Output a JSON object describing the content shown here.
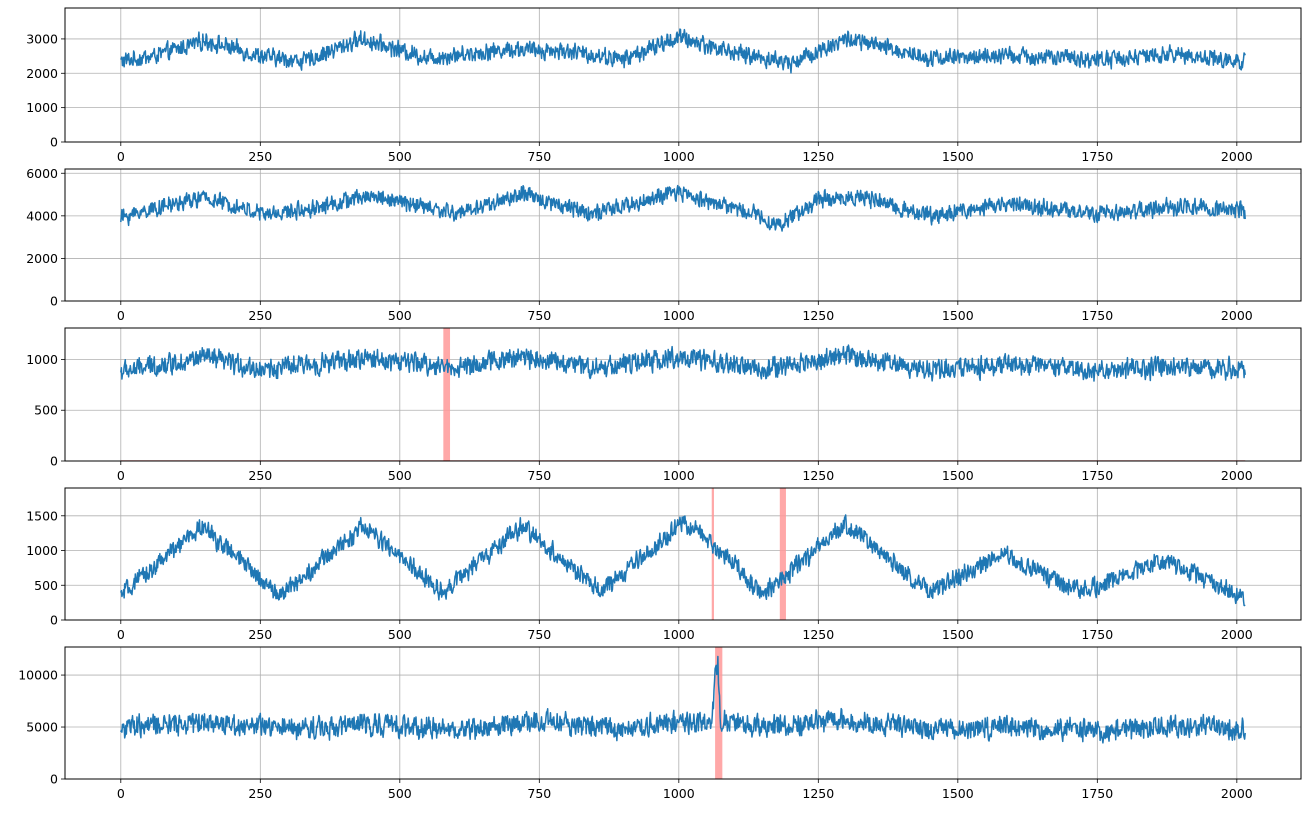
{
  "chart_data": [
    {
      "type": "line",
      "title": "",
      "xlabel": "",
      "ylabel": "",
      "xlim": [
        -100,
        2115
      ],
      "ylim": [
        0,
        3900
      ],
      "xticks": [
        0,
        250,
        500,
        750,
        1000,
        1250,
        1500,
        1750,
        2000
      ],
      "xtick_labels": [
        "0",
        "250",
        "500",
        "750",
        "1000",
        "1250",
        "1500",
        "1750",
        "2000"
      ],
      "yticks": [
        0,
        1000,
        2000,
        3000
      ],
      "ytick_labels": [
        "0",
        "1000",
        "2000",
        "3000"
      ],
      "grid": true,
      "series": [
        {
          "x_start": 0,
          "x_end": 2015,
          "envelope": [
            [
              0,
              2350
            ],
            [
              60,
              2500
            ],
            [
              150,
              2950
            ],
            [
              250,
              2500
            ],
            [
              330,
              2350
            ],
            [
              430,
              3000
            ],
            [
              550,
              2450
            ],
            [
              700,
              2700
            ],
            [
              800,
              2650
            ],
            [
              900,
              2400
            ],
            [
              1000,
              3050
            ],
            [
              1100,
              2600
            ],
            [
              1200,
              2300
            ],
            [
              1300,
              3000
            ],
            [
              1450,
              2450
            ],
            [
              1600,
              2500
            ],
            [
              1750,
              2400
            ],
            [
              1900,
              2550
            ],
            [
              2015,
              2300
            ]
          ],
          "noise_amplitude": 420,
          "color": "#1f77b4"
        }
      ],
      "anomaly_regions": []
    },
    {
      "type": "line",
      "title": "",
      "xlabel": "",
      "ylabel": "",
      "xlim": [
        -100,
        2115
      ],
      "ylim": [
        0,
        6200
      ],
      "xticks": [
        0,
        250,
        500,
        750,
        1000,
        1250,
        1500,
        1750,
        2000
      ],
      "xtick_labels": [
        "0",
        "250",
        "500",
        "750",
        "1000",
        "1250",
        "1500",
        "1750",
        "2000"
      ],
      "yticks": [
        0,
        2000,
        4000,
        6000
      ],
      "ytick_labels": [
        "0",
        "2000",
        "4000",
        "6000"
      ],
      "grid": true,
      "series": [
        {
          "x_start": 0,
          "x_end": 2015,
          "envelope": [
            [
              0,
              3900
            ],
            [
              50,
              4300
            ],
            [
              150,
              4850
            ],
            [
              260,
              4050
            ],
            [
              330,
              4300
            ],
            [
              450,
              4950
            ],
            [
              600,
              4100
            ],
            [
              720,
              5000
            ],
            [
              850,
              4100
            ],
            [
              1000,
              5100
            ],
            [
              1150,
              4000
            ],
            [
              1175,
              3500
            ],
            [
              1250,
              4750
            ],
            [
              1320,
              4900
            ],
            [
              1450,
              4000
            ],
            [
              1600,
              4600
            ],
            [
              1750,
              4050
            ],
            [
              1900,
              4450
            ],
            [
              2015,
              4250
            ]
          ],
          "noise_amplitude": 650,
          "color": "#1f77b4"
        }
      ],
      "anomaly_regions": []
    },
    {
      "type": "line",
      "title": "",
      "xlabel": "",
      "ylabel": "",
      "xlim": [
        -100,
        2115
      ],
      "ylim": [
        0,
        1310
      ],
      "xticks": [
        0,
        250,
        500,
        750,
        1000,
        1250,
        1500,
        1750,
        2000
      ],
      "xtick_labels": [
        "0",
        "250",
        "500",
        "750",
        "1000",
        "1250",
        "1500",
        "1750",
        "2000"
      ],
      "yticks": [
        0,
        500,
        1000
      ],
      "ytick_labels": [
        "0",
        "500",
        "1000"
      ],
      "grid": true,
      "series": [
        {
          "x_start": 0,
          "x_end": 2015,
          "envelope": [
            [
              0,
              880
            ],
            [
              150,
              1020
            ],
            [
              250,
              900
            ],
            [
              450,
              1010
            ],
            [
              600,
              920
            ],
            [
              720,
              1030
            ],
            [
              850,
              920
            ],
            [
              1000,
              1020
            ],
            [
              1150,
              900
            ],
            [
              1300,
              1040
            ],
            [
              1450,
              900
            ],
            [
              1600,
              950
            ],
            [
              1750,
              880
            ],
            [
              1900,
              930
            ],
            [
              2015,
              900
            ]
          ],
          "noise_amplitude": 170,
          "color": "#1f77b4"
        }
      ],
      "anomaly_regions": [
        [
          578,
          590
        ]
      ],
      "baseline_color": "#c00000"
    },
    {
      "type": "line",
      "title": "",
      "xlabel": "",
      "ylabel": "",
      "xlim": [
        -100,
        2115
      ],
      "ylim": [
        0,
        1900
      ],
      "xticks": [
        0,
        250,
        500,
        750,
        1000,
        1250,
        1500,
        1750,
        2000
      ],
      "xtick_labels": [
        "0",
        "250",
        "500",
        "750",
        "1000",
        "1250",
        "1500",
        "1750",
        "2000"
      ],
      "yticks": [
        0,
        500,
        1000,
        1500
      ],
      "ytick_labels": [
        "0",
        "500",
        "1000",
        "1500"
      ],
      "grid": true,
      "series": [
        {
          "x_start": 0,
          "x_end": 2015,
          "envelope": [
            [
              0,
              350
            ],
            [
              145,
              1350
            ],
            [
              285,
              350
            ],
            [
              435,
              1350
            ],
            [
              575,
              400
            ],
            [
              720,
              1350
            ],
            [
              860,
              400
            ],
            [
              1010,
              1400
            ],
            [
              1060,
              1100
            ],
            [
              1150,
              400
            ],
            [
              1180,
              550
            ],
            [
              1300,
              1380
            ],
            [
              1450,
              400
            ],
            [
              1580,
              950
            ],
            [
              1720,
              400
            ],
            [
              1870,
              880
            ],
            [
              2015,
              300
            ]
          ],
          "noise_amplitude": 230,
          "color": "#1f77b4"
        }
      ],
      "anomaly_regions": [
        [
          1059,
          1063
        ],
        [
          1181,
          1192
        ]
      ]
    },
    {
      "type": "line",
      "title": "",
      "xlabel": "",
      "ylabel": "",
      "xlim": [
        -100,
        2115
      ],
      "ylim": [
        0,
        12700
      ],
      "xticks": [
        0,
        250,
        500,
        750,
        1000,
        1250,
        1500,
        1750,
        2000
      ],
      "xtick_labels": [
        "0",
        "250",
        "500",
        "750",
        "1000",
        "1250",
        "1500",
        "1750",
        "2000"
      ],
      "yticks": [
        0,
        5000,
        10000
      ],
      "ytick_labels": [
        "0",
        "5000",
        "10000"
      ],
      "grid": true,
      "series": [
        {
          "x_start": 0,
          "x_end": 2015,
          "envelope": [
            [
              0,
              4900
            ],
            [
              150,
              5500
            ],
            [
              300,
              4800
            ],
            [
              450,
              5300
            ],
            [
              600,
              4700
            ],
            [
              750,
              5500
            ],
            [
              900,
              4900
            ],
            [
              1000,
              5500
            ],
            [
              1060,
              5300
            ],
            [
              1065,
              10500
            ],
            [
              1070,
              11000
            ],
            [
              1075,
              5600
            ],
            [
              1150,
              5000
            ],
            [
              1300,
              5700
            ],
            [
              1450,
              4800
            ],
            [
              1600,
              5000
            ],
            [
              1750,
              4600
            ],
            [
              1900,
              5200
            ],
            [
              2015,
              4600
            ]
          ],
          "noise_amplitude": 1800,
          "color": "#1f77b4"
        }
      ],
      "anomaly_regions": [
        [
          1065,
          1078
        ]
      ]
    }
  ],
  "colors": {
    "series": "#1f77b4",
    "anomaly": "#ff9999",
    "grid": "#b0b0b0"
  }
}
